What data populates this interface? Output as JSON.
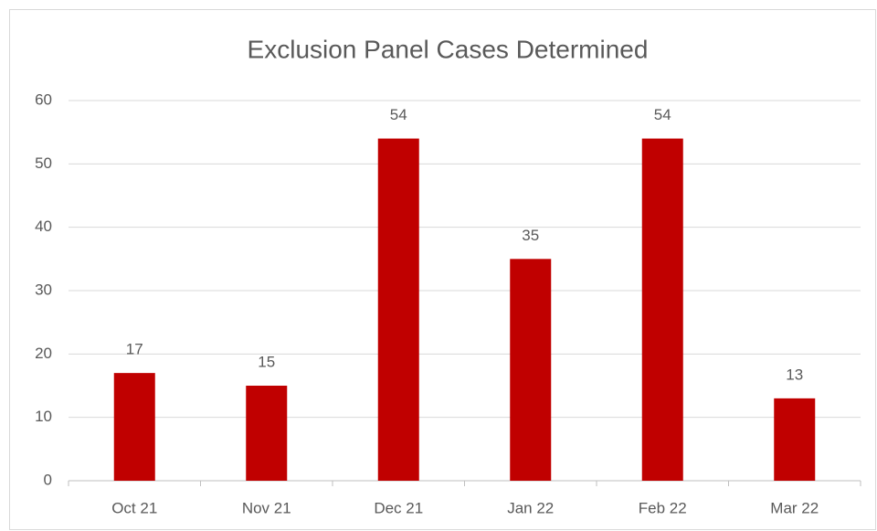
{
  "chart_data": {
    "type": "bar",
    "title": "Exclusion Panel Cases Determined",
    "categories": [
      "Oct 21",
      "Nov 21",
      "Dec 21",
      "Jan 22",
      "Feb 22",
      "Mar 22"
    ],
    "values": [
      17,
      15,
      54,
      35,
      54,
      13
    ],
    "color": "#c00000",
    "ylim": [
      0,
      60
    ],
    "yticks": [
      0,
      10,
      20,
      30,
      40,
      50,
      60
    ],
    "grid": true
  }
}
